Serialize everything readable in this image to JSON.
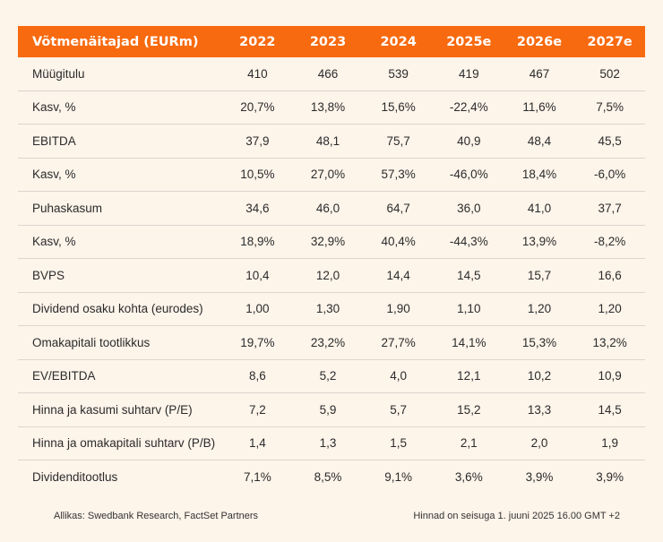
{
  "table": {
    "header": [
      "Võtmenäitajad (EURm)",
      "2022",
      "2023",
      "2024",
      "2025e",
      "2026e",
      "2027e"
    ],
    "rows": [
      {
        "label": "Müügitulu",
        "values": [
          "410",
          "466",
          "539",
          "419",
          "467",
          "502"
        ]
      },
      {
        "label": "Kasv, %",
        "values": [
          "20,7%",
          "13,8%",
          "15,6%",
          "-22,4%",
          "11,6%",
          "7,5%"
        ]
      },
      {
        "label": "EBITDA",
        "values": [
          "37,9",
          "48,1",
          "75,7",
          "40,9",
          "48,4",
          "45,5"
        ]
      },
      {
        "label": "Kasv, %",
        "values": [
          "10,5%",
          "27,0%",
          "57,3%",
          "-46,0%",
          "18,4%",
          "-6,0%"
        ]
      },
      {
        "label": "Puhaskasum",
        "values": [
          "34,6",
          "46,0",
          "64,7",
          "36,0",
          "41,0",
          "37,7"
        ]
      },
      {
        "label": "Kasv, %",
        "values": [
          "18,9%",
          "32,9%",
          "40,4%",
          "-44,3%",
          "13,9%",
          "-8,2%"
        ]
      },
      {
        "label": "BVPS",
        "values": [
          "10,4",
          "12,0",
          "14,4",
          "14,5",
          "15,7",
          "16,6"
        ]
      },
      {
        "label": "Dividend osaku kohta (eurodes)",
        "values": [
          "1,00",
          "1,30",
          "1,90",
          "1,10",
          "1,20",
          "1,20"
        ]
      },
      {
        "label": "Omakapitali tootlikkus",
        "values": [
          "19,7%",
          "23,2%",
          "27,7%",
          "14,1%",
          "15,3%",
          "13,2%"
        ]
      },
      {
        "label": "EV/EBITDA",
        "values": [
          "8,6",
          "5,2",
          "4,0",
          "12,1",
          "10,2",
          "10,9"
        ]
      },
      {
        "label": "Hinna ja kasumi suhtarv (P/E)",
        "values": [
          "7,2",
          "5,9",
          "5,7",
          "15,2",
          "13,3",
          "14,5"
        ]
      },
      {
        "label": "Hinna ja omakapitali suhtarv (P/B)",
        "values": [
          "1,4",
          "1,3",
          "1,5",
          "2,1",
          "2,0",
          "1,9"
        ]
      },
      {
        "label": "Dividenditootlus",
        "values": [
          "7,1%",
          "8,5%",
          "9,1%",
          "3,6%",
          "3,9%",
          "3,9%"
        ]
      }
    ]
  },
  "footer": {
    "source": "Allikas: Swedbank Research, FactSet Partners",
    "prices_note": "Hinnad on seisuga 1. juuni 2025 16.00 GMT +2"
  },
  "colors": {
    "header_bg": "#f86a0f",
    "page_bg": "#fdf4ea"
  }
}
